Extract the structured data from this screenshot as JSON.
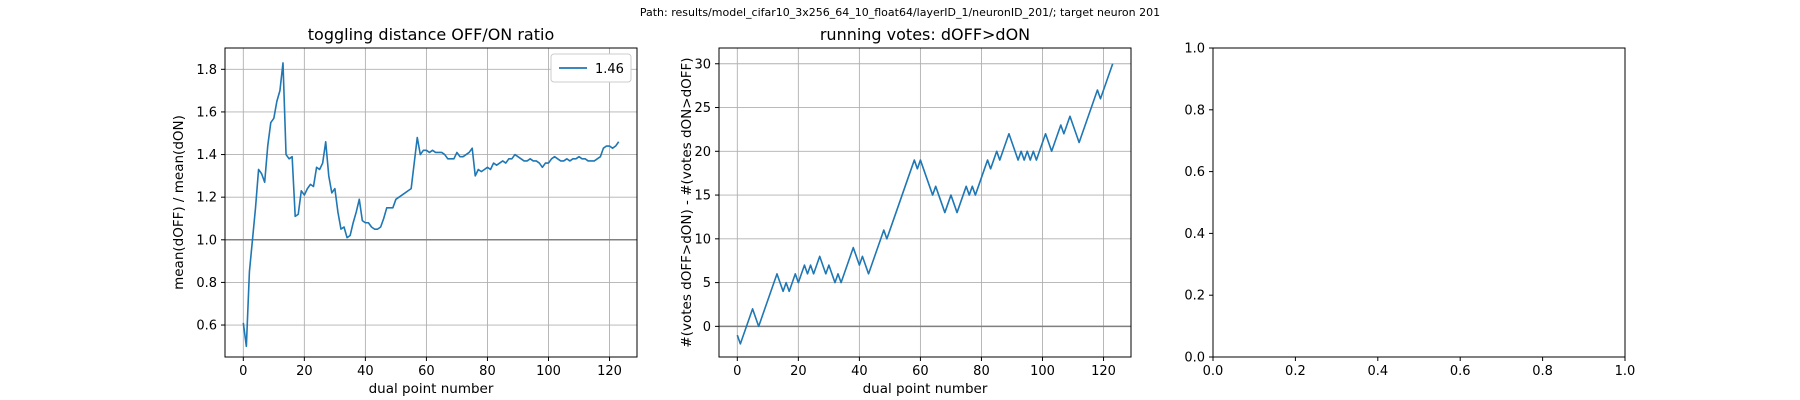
{
  "suptitle": "Path: results/model_cifar10_3x256_64_10_float64/layerID_1/neuronID_201/; target neuron 201",
  "colors": {
    "line": "#1f77b4",
    "grid": "#b0b0b0",
    "hline": "#808080"
  },
  "chart_data": [
    {
      "type": "line",
      "title": "toggling distance OFF/ON ratio",
      "xlabel": "dual point number",
      "ylabel": "mean(dOFF) / mean(dON)",
      "xlim": [
        -6,
        129
      ],
      "ylim": [
        0.45,
        1.9
      ],
      "xticks": [
        0,
        20,
        40,
        60,
        80,
        100,
        120
      ],
      "yticks": [
        0.6,
        0.8,
        1.0,
        1.2,
        1.4,
        1.6,
        1.8
      ],
      "ytick_labels": [
        "0.6",
        "0.8",
        "1.0",
        "1.2",
        "1.4",
        "1.6",
        "1.8"
      ],
      "grid": true,
      "hline": 1.0,
      "legend": {
        "position": "top-right",
        "entries": [
          "1.46"
        ]
      },
      "series": [
        {
          "name": "1.46",
          "x": [
            0,
            1,
            2,
            3,
            4,
            5,
            6,
            7,
            8,
            9,
            10,
            11,
            12,
            13,
            14,
            15,
            16,
            17,
            18,
            19,
            20,
            21,
            22,
            23,
            24,
            25,
            26,
            27,
            28,
            29,
            30,
            31,
            32,
            33,
            34,
            35,
            36,
            37,
            38,
            39,
            40,
            41,
            42,
            43,
            44,
            45,
            46,
            47,
            48,
            49,
            50,
            51,
            52,
            53,
            54,
            55,
            56,
            57,
            58,
            59,
            60,
            61,
            62,
            63,
            64,
            65,
            66,
            67,
            68,
            69,
            70,
            71,
            72,
            73,
            74,
            75,
            76,
            77,
            78,
            79,
            80,
            81,
            82,
            83,
            84,
            85,
            86,
            87,
            88,
            89,
            90,
            91,
            92,
            93,
            94,
            95,
            96,
            97,
            98,
            99,
            100,
            101,
            102,
            103,
            104,
            105,
            106,
            107,
            108,
            109,
            110,
            111,
            112,
            113,
            114,
            115,
            116,
            117,
            118,
            119,
            120,
            121,
            122,
            123
          ],
          "y": [
            0.61,
            0.5,
            0.85,
            1.0,
            1.15,
            1.33,
            1.31,
            1.27,
            1.44,
            1.55,
            1.57,
            1.65,
            1.7,
            1.83,
            1.4,
            1.38,
            1.39,
            1.11,
            1.12,
            1.23,
            1.21,
            1.24,
            1.26,
            1.25,
            1.34,
            1.33,
            1.36,
            1.46,
            1.3,
            1.22,
            1.24,
            1.13,
            1.05,
            1.06,
            1.01,
            1.02,
            1.08,
            1.13,
            1.19,
            1.09,
            1.08,
            1.08,
            1.06,
            1.05,
            1.05,
            1.06,
            1.1,
            1.15,
            1.15,
            1.15,
            1.19,
            1.2,
            1.21,
            1.22,
            1.23,
            1.24,
            1.36,
            1.48,
            1.4,
            1.42,
            1.42,
            1.41,
            1.42,
            1.41,
            1.41,
            1.41,
            1.4,
            1.38,
            1.38,
            1.38,
            1.41,
            1.39,
            1.39,
            1.4,
            1.41,
            1.43,
            1.3,
            1.33,
            1.32,
            1.33,
            1.34,
            1.33,
            1.36,
            1.35,
            1.36,
            1.37,
            1.36,
            1.38,
            1.38,
            1.4,
            1.39,
            1.38,
            1.37,
            1.37,
            1.38,
            1.37,
            1.37,
            1.36,
            1.34,
            1.36,
            1.36,
            1.38,
            1.39,
            1.38,
            1.37,
            1.37,
            1.38,
            1.37,
            1.38,
            1.38,
            1.39,
            1.38,
            1.38,
            1.37,
            1.37,
            1.37,
            1.38,
            1.39,
            1.43,
            1.44,
            1.44,
            1.43,
            1.44,
            1.46
          ]
        }
      ]
    },
    {
      "type": "line",
      "title": "running votes: dOFF>dON",
      "xlabel": "dual point number",
      "ylabel": "#(votes dOFF>dON) - #(votes dON>dOFF)",
      "xlim": [
        -6,
        129
      ],
      "ylim": [
        -3.5,
        31.8
      ],
      "xticks": [
        0,
        20,
        40,
        60,
        80,
        100,
        120
      ],
      "yticks": [
        0,
        5,
        10,
        15,
        20,
        25,
        30
      ],
      "ytick_labels": [
        "0",
        "5",
        "10",
        "15",
        "20",
        "25",
        "30"
      ],
      "grid": true,
      "hline": 0,
      "series": [
        {
          "x": [
            0,
            1,
            2,
            3,
            4,
            5,
            6,
            7,
            8,
            9,
            10,
            11,
            12,
            13,
            14,
            15,
            16,
            17,
            18,
            19,
            20,
            21,
            22,
            23,
            24,
            25,
            26,
            27,
            28,
            29,
            30,
            31,
            32,
            33,
            34,
            35,
            36,
            37,
            38,
            39,
            40,
            41,
            42,
            43,
            44,
            45,
            46,
            47,
            48,
            49,
            50,
            51,
            52,
            53,
            54,
            55,
            56,
            57,
            58,
            59,
            60,
            61,
            62,
            63,
            64,
            65,
            66,
            67,
            68,
            69,
            70,
            71,
            72,
            73,
            74,
            75,
            76,
            77,
            78,
            79,
            80,
            81,
            82,
            83,
            84,
            85,
            86,
            87,
            88,
            89,
            90,
            91,
            92,
            93,
            94,
            95,
            96,
            97,
            98,
            99,
            100,
            101,
            102,
            103,
            104,
            105,
            106,
            107,
            108,
            109,
            110,
            111,
            112,
            113,
            114,
            115,
            116,
            117,
            118,
            119,
            120,
            121,
            122,
            123
          ],
          "y": [
            -1,
            -2,
            -1,
            0,
            1,
            2,
            1,
            0,
            1,
            2,
            3,
            4,
            5,
            6,
            5,
            4,
            5,
            4,
            5,
            6,
            5,
            6,
            7,
            6,
            7,
            6,
            7,
            8,
            7,
            6,
            7,
            6,
            5,
            6,
            5,
            6,
            7,
            8,
            9,
            8,
            7,
            8,
            7,
            6,
            7,
            8,
            9,
            10,
            11,
            10,
            11,
            12,
            13,
            14,
            15,
            16,
            17,
            18,
            19,
            18,
            19,
            18,
            17,
            16,
            15,
            16,
            15,
            14,
            13,
            14,
            15,
            14,
            13,
            14,
            15,
            16,
            15,
            16,
            15,
            16,
            17,
            18,
            19,
            18,
            19,
            20,
            19,
            20,
            21,
            22,
            21,
            20,
            19,
            20,
            19,
            20,
            19,
            20,
            19,
            20,
            21,
            22,
            21,
            20,
            21,
            22,
            23,
            22,
            23,
            24,
            23,
            22,
            21,
            22,
            23,
            24,
            25,
            26,
            27,
            26,
            27,
            28,
            29,
            30
          ]
        }
      ]
    },
    {
      "type": "line",
      "title": "",
      "xlabel": "",
      "ylabel": "",
      "xlim": [
        0,
        1
      ],
      "ylim": [
        0,
        1
      ],
      "xticks": [
        0,
        0.2,
        0.4,
        0.6,
        0.8,
        1.0
      ],
      "xtick_labels": [
        "0.0",
        "0.2",
        "0.4",
        "0.6",
        "0.8",
        "1.0"
      ],
      "yticks": [
        0,
        0.2,
        0.4,
        0.6,
        0.8,
        1.0
      ],
      "ytick_labels": [
        "0.0",
        "0.2",
        "0.4",
        "0.6",
        "0.8",
        "1.0"
      ],
      "grid": false,
      "series": []
    }
  ]
}
